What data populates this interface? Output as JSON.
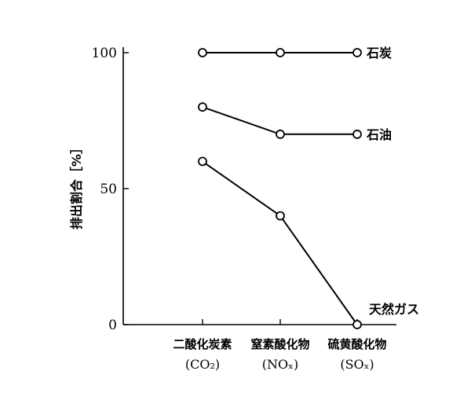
{
  "chart_data": {
    "type": "line",
    "title": "",
    "xlabel": "",
    "ylabel": "排出割合［%］",
    "ylim": [
      0,
      100
    ],
    "yticks": [
      "0",
      "50",
      "100"
    ],
    "categories": [
      {
        "name": "二酸化炭素",
        "formula": "(CO₂)"
      },
      {
        "name": "窒素酸化物",
        "formula": "(NOₓ)"
      },
      {
        "name": "硫黄酸化物",
        "formula": "(SOₓ)"
      }
    ],
    "series": [
      {
        "name": "石炭",
        "values": [
          100,
          100,
          100
        ]
      },
      {
        "name": "石油",
        "values": [
          80,
          70,
          70
        ]
      },
      {
        "name": "天然ガス",
        "values": [
          60,
          40,
          0
        ]
      }
    ],
    "grid": false,
    "legend": "inline-right"
  }
}
